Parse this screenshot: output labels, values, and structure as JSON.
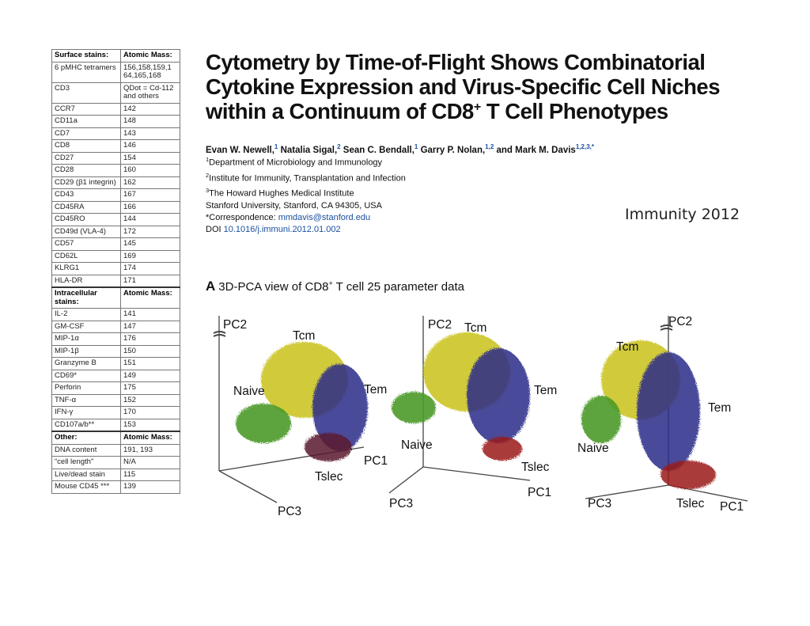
{
  "table": {
    "sections": [
      {
        "header": [
          "Surface stains:",
          "Atomic Mass:"
        ],
        "rows": [
          [
            "6 pMHC tetramers",
            "156,158,159,1 64,165,168"
          ],
          [
            "CD3",
            "QDot = Cd-112 and others"
          ],
          [
            "CCR7",
            "142"
          ],
          [
            "CD11a",
            "148"
          ],
          [
            "CD7",
            "143"
          ],
          [
            "CD8",
            "146"
          ],
          [
            "CD27",
            "154"
          ],
          [
            "CD28",
            "160"
          ],
          [
            "CD29 (β1 integrin)",
            "162"
          ],
          [
            "CD43",
            "167"
          ],
          [
            "CD45RA",
            "166"
          ],
          [
            "CD45RO",
            "144"
          ],
          [
            "CD49d (VLA-4)",
            "172"
          ],
          [
            "CD57",
            "145"
          ],
          [
            "CD62L",
            "169"
          ],
          [
            "KLRG1",
            "174"
          ],
          [
            "HLA-DR",
            "171"
          ]
        ]
      },
      {
        "header": [
          "Intracellular stains:",
          "Atomic Mass:"
        ],
        "rows": [
          [
            "IL-2",
            "141"
          ],
          [
            "GM-CSF",
            "147"
          ],
          [
            "MIP-1α",
            "176"
          ],
          [
            "MIP-1β",
            "150"
          ],
          [
            "Granzyme B",
            "151"
          ],
          [
            "CD69*",
            "149"
          ],
          [
            "Perforin",
            "175"
          ],
          [
            "TNF-α",
            "152"
          ],
          [
            "IFN-γ",
            "170"
          ],
          [
            "CD107a/b**",
            "153"
          ]
        ]
      },
      {
        "header": [
          "Other:",
          "Atomic Mass:"
        ],
        "rows": [
          [
            "DNA content",
            "191, 193"
          ],
          [
            "“cell length”",
            "N/A"
          ],
          [
            "Live/dead stain",
            "115"
          ],
          [
            "Mouse CD45 ***",
            "139"
          ]
        ]
      }
    ]
  },
  "paper": {
    "title_line1": "Cytometry by Time-of-Flight Shows Combinatorial",
    "title_line2": "Cytokine Expression and Virus-Specific Cell Niches",
    "title_line3_pre": "within a Continuum of CD8",
    "title_line3_sup": "+",
    "title_line3_post": " T Cell Phenotypes",
    "authors": [
      {
        "name": "Evan W. Newell,",
        "sup": "1"
      },
      {
        "name": " Natalia Sigal,",
        "sup": "2"
      },
      {
        "name": " Sean C. Bendall,",
        "sup": "1"
      },
      {
        "name": " Garry P. Nolan,",
        "sup": "1,2"
      },
      {
        "name": " and Mark M. Davis",
        "sup": "1,2,3,*"
      }
    ],
    "aff1_sup": "1",
    "aff1": "Department of Microbiology and Immunology",
    "aff2_sup": "2",
    "aff2": "Institute for Immunity, Transplantation and Infection",
    "aff3_sup": "3",
    "aff3": "The Howard Hughes Medical Institute",
    "aff4": "Stanford University, Stanford, CA 94305, USA",
    "corr_label": "*Correspondence: ",
    "corr_email": "mmdavis@stanford.edu",
    "doi_label": "DOI ",
    "doi": "10.1016/j.immuni.2012.01.002"
  },
  "journal_note": "Immunity 2012",
  "figure": {
    "panel_letter": "A",
    "panel_title_pre": "3D-PCA view of CD8",
    "panel_title_sup": "+",
    "panel_title_post": " T cell 25 parameter data",
    "colors": {
      "naive": "#4c9a2a",
      "tcm": "#c9c21a",
      "tem": "#2a2a8a",
      "tslec": "#9a1a1a"
    },
    "views": [
      {
        "labels": {
          "pc2": "PC2",
          "tcm": "Tcm",
          "naive": "Naive",
          "tem": "Tem",
          "pc1": "PC1",
          "tslec": "Tslec",
          "pc3": "PC3"
        }
      },
      {
        "labels": {
          "pc2": "PC2",
          "tcm": "Tcm",
          "naive": "Naive",
          "tem": "Tem",
          "pc1": "PC1",
          "tslec": "Tslec",
          "pc3": "PC3"
        }
      },
      {
        "labels": {
          "pc2": "PC2",
          "tcm": "Tcm",
          "naive": "Naive",
          "tem": "Tem",
          "pc1": "PC1",
          "tslec": "Tslec",
          "pc3": "PC3"
        }
      }
    ]
  }
}
